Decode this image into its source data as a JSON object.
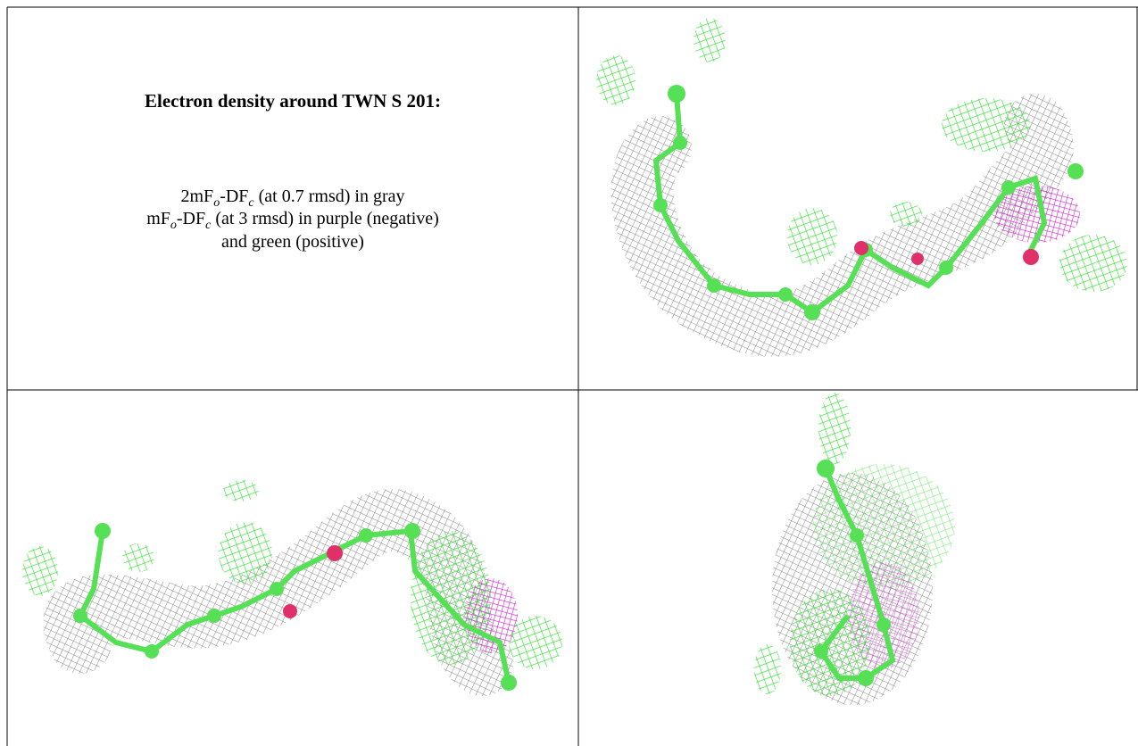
{
  "caption": {
    "title": "Electron density around TWN S 201:",
    "lines": [
      [
        "2mF",
        "o",
        "-DF",
        "c",
        " (at 0.7 rmsd) in gray"
      ],
      [
        "mF",
        "o",
        "-DF",
        "c",
        " (at 3 rmsd) in purple (negative)"
      ],
      [
        "and green (positive)"
      ]
    ]
  }
}
